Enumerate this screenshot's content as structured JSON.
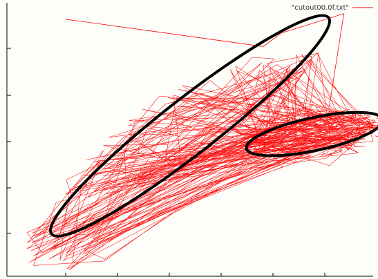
{
  "chart_data": {
    "type": "line",
    "title": "",
    "xlabel": "",
    "ylabel": "",
    "legend": {
      "placement": "top-right",
      "entries": [
        "\"cutout00.0f.txt\""
      ]
    },
    "grid": false,
    "x_tick_labels_visible": false,
    "y_tick_labels_visible": false,
    "series": [
      {
        "name": "\"cutout00.0f.txt\"",
        "color": "#ff0000",
        "style": "thin line, dense scribble of segments",
        "extent": {
          "x": [
            0.05,
            0.96
          ],
          "y": [
            0.0,
            0.96
          ]
        }
      }
    ],
    "overlays": [
      {
        "shape": "ellipse",
        "color": "#000000",
        "center": [
          0.5,
          0.55
        ],
        "rx": 0.48,
        "ry": 0.1,
        "rotation_deg": 38
      },
      {
        "shape": "ellipse",
        "color": "#000000",
        "center": [
          0.84,
          0.52
        ],
        "rx": 0.19,
        "ry": 0.06,
        "rotation_deg": 12
      }
    ]
  }
}
